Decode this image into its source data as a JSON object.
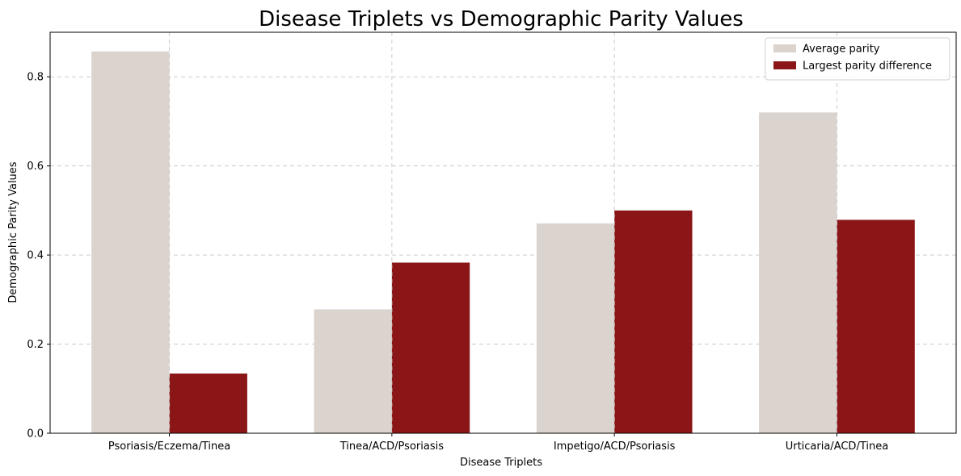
{
  "chart_data": {
    "type": "bar",
    "title": "Disease Triplets vs Demographic Parity Values",
    "xlabel": "Disease Triplets",
    "ylabel": "Demographic Parity Values",
    "categories": [
      "Psoriasis/Eczema/Tinea",
      "Tinea/ACD/Psoriasis",
      "Impetigo/ACD/Psoriasis",
      "Urticaria/ACD/Tinea"
    ],
    "series": [
      {
        "name": "Average parity",
        "color": "#dbd3cd",
        "values": [
          0.857,
          0.278,
          0.471,
          0.72
        ]
      },
      {
        "name": "Largest parity difference",
        "color": "#8b1618",
        "values": [
          0.134,
          0.383,
          0.5,
          0.479
        ]
      }
    ],
    "ylim": [
      0,
      0.9
    ],
    "yticks": [
      0.0,
      0.2,
      0.4,
      0.6,
      0.8
    ],
    "ytick_labels": [
      "0.0",
      "0.2",
      "0.4",
      "0.6",
      "0.8"
    ],
    "grid": true,
    "legend_position": "top-right"
  }
}
